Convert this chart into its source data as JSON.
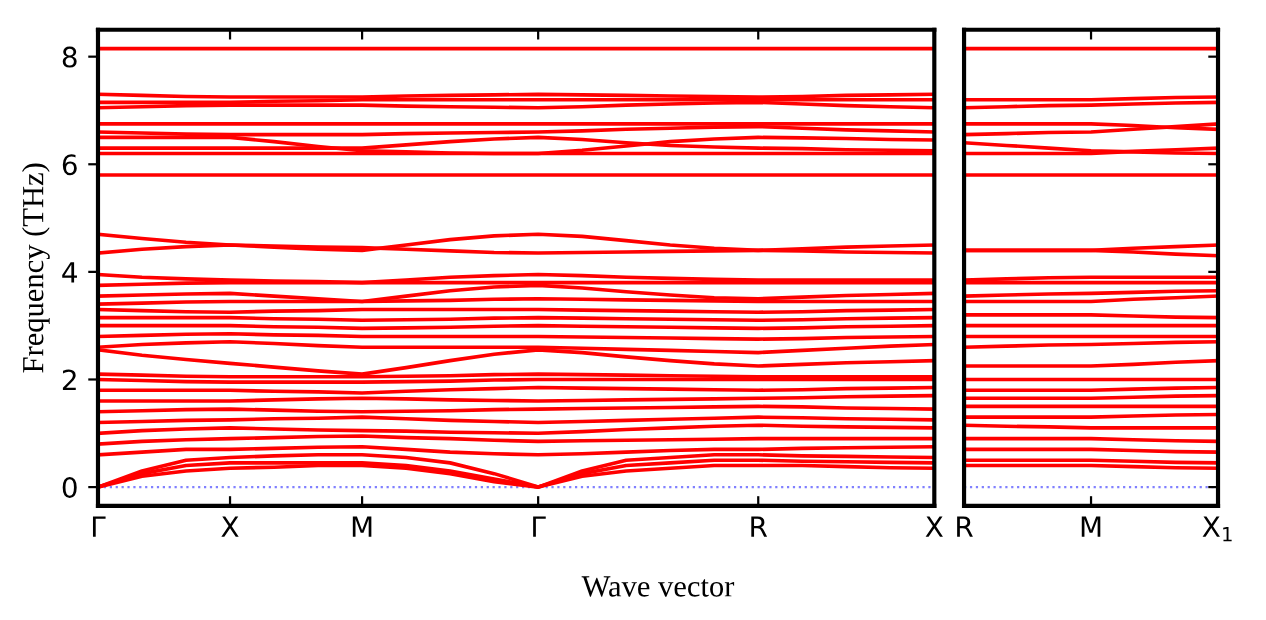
{
  "chart_data": [
    {
      "type": "line",
      "xlabel": "Wave vector",
      "ylabel": "Frequency (THz)",
      "categories": [
        "Γ",
        null,
        null,
        "X",
        null,
        null,
        "M",
        null,
        null,
        null,
        "Γ",
        null,
        null,
        null,
        null,
        "R",
        null,
        null,
        null,
        "X"
      ],
      "ylim": [
        -0.35,
        8.5
      ],
      "yticks": [
        0,
        2,
        4,
        6,
        8
      ],
      "grid": false,
      "legend": false,
      "marker": "none",
      "line_style": "solid",
      "ref_lines": [
        {
          "axis": "y",
          "value": 0,
          "color": "#8080ff",
          "line_style": "dotted"
        }
      ],
      "series": [
        {
          "color": "#ff0000",
          "values": [
            0,
            0.2,
            0.3,
            0.35,
            0.37,
            0.4,
            0.4,
            0.35,
            0.25,
            0.1,
            0,
            0.2,
            0.3,
            0.35,
            0.4,
            0.4,
            0.4,
            0.38,
            0.36,
            0.35
          ]
        },
        {
          "color": "#ff0000",
          "values": [
            0,
            0.25,
            0.4,
            0.45,
            0.45,
            0.45,
            0.45,
            0.4,
            0.3,
            0.15,
            0,
            0.25,
            0.4,
            0.45,
            0.5,
            0.5,
            0.48,
            0.47,
            0.46,
            0.45
          ]
        },
        {
          "color": "#ff0000",
          "values": [
            0,
            0.3,
            0.5,
            0.55,
            0.58,
            0.6,
            0.6,
            0.55,
            0.45,
            0.25,
            0,
            0.3,
            0.5,
            0.55,
            0.6,
            0.6,
            0.58,
            0.57,
            0.56,
            0.55
          ]
        },
        {
          "color": "#ff0000",
          "values": [
            0.6,
            0.65,
            0.7,
            0.7,
            0.72,
            0.74,
            0.75,
            0.7,
            0.65,
            0.62,
            0.6,
            0.62,
            0.65,
            0.68,
            0.7,
            0.7,
            0.72,
            0.73,
            0.74,
            0.75
          ]
        },
        {
          "color": "#ff0000",
          "values": [
            0.8,
            0.85,
            0.88,
            0.9,
            0.92,
            0.94,
            0.95,
            0.92,
            0.9,
            0.87,
            0.85,
            0.86,
            0.87,
            0.88,
            0.89,
            0.9,
            0.9,
            0.9,
            0.9,
            0.9
          ]
        },
        {
          "color": "#ff0000",
          "values": [
            1.0,
            1.05,
            1.08,
            1.1,
            1.08,
            1.06,
            1.05,
            1.04,
            1.02,
            1.01,
            1.0,
            1.03,
            1.07,
            1.1,
            1.13,
            1.15,
            1.13,
            1.12,
            1.11,
            1.1
          ]
        },
        {
          "color": "#ff0000",
          "values": [
            1.2,
            1.22,
            1.24,
            1.25,
            1.27,
            1.28,
            1.3,
            1.27,
            1.24,
            1.22,
            1.2,
            1.22,
            1.24,
            1.26,
            1.28,
            1.3,
            1.29,
            1.27,
            1.26,
            1.25
          ]
        },
        {
          "color": "#ff0000",
          "values": [
            1.4,
            1.42,
            1.44,
            1.45,
            1.43,
            1.41,
            1.4,
            1.41,
            1.42,
            1.44,
            1.45,
            1.46,
            1.47,
            1.48,
            1.49,
            1.5,
            1.49,
            1.47,
            1.46,
            1.45
          ]
        },
        {
          "color": "#ff0000",
          "values": [
            1.6,
            1.6,
            1.6,
            1.6,
            1.62,
            1.64,
            1.65,
            1.64,
            1.62,
            1.61,
            1.6,
            1.61,
            1.62,
            1.63,
            1.64,
            1.65,
            1.66,
            1.68,
            1.69,
            1.7
          ]
        },
        {
          "color": "#ff0000",
          "values": [
            1.8,
            1.8,
            1.8,
            1.8,
            1.78,
            1.77,
            1.75,
            1.78,
            1.81,
            1.83,
            1.85,
            1.84,
            1.83,
            1.82,
            1.81,
            1.8,
            1.81,
            1.83,
            1.84,
            1.85
          ]
        },
        {
          "color": "#ff0000",
          "values": [
            2.0,
            1.98,
            1.96,
            1.95,
            1.95,
            1.95,
            1.95,
            1.96,
            1.97,
            1.99,
            2.0,
            2.0,
            2.0,
            2.0,
            2.0,
            2.0,
            2.0,
            2.0,
            2.0,
            2.0
          ]
        },
        {
          "color": "#ff0000",
          "values": [
            2.1,
            2.08,
            2.06,
            2.05,
            2.05,
            2.05,
            2.05,
            2.06,
            2.07,
            2.09,
            2.1,
            2.09,
            2.08,
            2.07,
            2.06,
            2.05,
            2.05,
            2.05,
            2.05,
            2.05
          ]
        },
        {
          "color": "#ff0000",
          "values": [
            2.55,
            2.45,
            2.37,
            2.3,
            2.23,
            2.16,
            2.1,
            2.22,
            2.35,
            2.47,
            2.55,
            2.5,
            2.42,
            2.35,
            2.29,
            2.25,
            2.28,
            2.31,
            2.33,
            2.35
          ]
        },
        {
          "color": "#ff0000",
          "values": [
            2.6,
            2.65,
            2.68,
            2.7,
            2.67,
            2.63,
            2.6,
            2.6,
            2.6,
            2.6,
            2.6,
            2.58,
            2.56,
            2.54,
            2.52,
            2.5,
            2.54,
            2.58,
            2.62,
            2.65
          ]
        },
        {
          "color": "#ff0000",
          "values": [
            2.8,
            2.82,
            2.84,
            2.85,
            2.83,
            2.82,
            2.8,
            2.8,
            2.8,
            2.8,
            2.8,
            2.79,
            2.78,
            2.77,
            2.76,
            2.75,
            2.76,
            2.78,
            2.79,
            2.8
          ]
        },
        {
          "color": "#ff0000",
          "values": [
            3.0,
            3.0,
            3.0,
            3.0,
            2.98,
            2.97,
            2.95,
            2.96,
            2.97,
            2.99,
            3.0,
            2.99,
            2.98,
            2.97,
            2.96,
            2.95,
            2.96,
            2.98,
            2.99,
            3.0
          ]
        },
        {
          "color": "#ff0000",
          "values": [
            3.15,
            3.15,
            3.15,
            3.15,
            3.13,
            3.12,
            3.1,
            3.11,
            3.12,
            3.14,
            3.15,
            3.14,
            3.13,
            3.12,
            3.11,
            3.1,
            3.11,
            3.13,
            3.14,
            3.15
          ]
        },
        {
          "color": "#ff0000",
          "values": [
            3.3,
            3.28,
            3.26,
            3.25,
            3.27,
            3.28,
            3.3,
            3.3,
            3.3,
            3.3,
            3.3,
            3.29,
            3.28,
            3.27,
            3.26,
            3.25,
            3.26,
            3.28,
            3.29,
            3.3
          ]
        },
        {
          "color": "#ff0000",
          "values": [
            3.4,
            3.42,
            3.44,
            3.45,
            3.45,
            3.45,
            3.45,
            3.46,
            3.47,
            3.49,
            3.5,
            3.49,
            3.48,
            3.47,
            3.46,
            3.45,
            3.45,
            3.45,
            3.45,
            3.45
          ]
        },
        {
          "color": "#ff0000",
          "values": [
            3.55,
            3.57,
            3.59,
            3.6,
            3.55,
            3.5,
            3.45,
            3.55,
            3.65,
            3.72,
            3.75,
            3.7,
            3.63,
            3.57,
            3.52,
            3.5,
            3.53,
            3.56,
            3.58,
            3.6
          ]
        },
        {
          "color": "#ff0000",
          "values": [
            3.75,
            3.77,
            3.79,
            3.8,
            3.8,
            3.8,
            3.8,
            3.8,
            3.8,
            3.8,
            3.8,
            3.8,
            3.8,
            3.8,
            3.8,
            3.8,
            3.8,
            3.8,
            3.8,
            3.8
          ]
        },
        {
          "color": "#ff0000",
          "values": [
            3.95,
            3.9,
            3.87,
            3.85,
            3.83,
            3.82,
            3.8,
            3.85,
            3.9,
            3.93,
            3.95,
            3.93,
            3.9,
            3.88,
            3.86,
            3.85,
            3.85,
            3.85,
            3.85,
            3.85
          ]
        },
        {
          "color": "#ff0000",
          "values": [
            4.35,
            4.42,
            4.47,
            4.5,
            4.48,
            4.46,
            4.45,
            4.42,
            4.39,
            4.36,
            4.35,
            4.36,
            4.37,
            4.38,
            4.39,
            4.4,
            4.39,
            4.37,
            4.36,
            4.35
          ]
        },
        {
          "color": "#ff0000",
          "values": [
            4.7,
            4.62,
            4.55,
            4.5,
            4.46,
            4.42,
            4.4,
            4.5,
            4.6,
            4.67,
            4.7,
            4.66,
            4.58,
            4.5,
            4.44,
            4.4,
            4.43,
            4.46,
            4.48,
            4.5
          ]
        },
        {
          "color": "#ff0000",
          "values": [
            5.8,
            5.8,
            5.8,
            5.8,
            5.8,
            5.8,
            5.8,
            5.8,
            5.8,
            5.8,
            5.8,
            5.8,
            5.8,
            5.8,
            5.8,
            5.8,
            5.8,
            5.8,
            5.8,
            5.8
          ]
        },
        {
          "color": "#ff0000",
          "values": [
            6.2,
            6.2,
            6.2,
            6.2,
            6.2,
            6.2,
            6.2,
            6.2,
            6.2,
            6.2,
            6.2,
            6.2,
            6.2,
            6.2,
            6.2,
            6.2,
            6.2,
            6.2,
            6.2,
            6.2
          ]
        },
        {
          "color": "#ff0000",
          "values": [
            6.3,
            6.3,
            6.3,
            6.3,
            6.3,
            6.3,
            6.3,
            6.36,
            6.42,
            6.47,
            6.5,
            6.46,
            6.4,
            6.35,
            6.32,
            6.3,
            6.29,
            6.27,
            6.26,
            6.25
          ]
        },
        {
          "color": "#ff0000",
          "values": [
            6.5,
            6.5,
            6.5,
            6.5,
            6.42,
            6.33,
            6.25,
            6.23,
            6.21,
            6.2,
            6.2,
            6.26,
            6.34,
            6.42,
            6.47,
            6.5,
            6.49,
            6.48,
            6.46,
            6.45
          ]
        },
        {
          "color": "#ff0000",
          "values": [
            6.6,
            6.58,
            6.56,
            6.55,
            6.55,
            6.55,
            6.55,
            6.57,
            6.58,
            6.59,
            6.6,
            6.62,
            6.65,
            6.67,
            6.69,
            6.7,
            6.67,
            6.64,
            6.62,
            6.6
          ]
        },
        {
          "color": "#ff0000",
          "values": [
            6.75,
            6.75,
            6.75,
            6.75,
            6.75,
            6.75,
            6.75,
            6.75,
            6.75,
            6.75,
            6.75,
            6.75,
            6.75,
            6.75,
            6.75,
            6.75,
            6.75,
            6.75,
            6.75,
            6.75
          ]
        },
        {
          "color": "#ff0000",
          "values": [
            7.05,
            7.07,
            7.09,
            7.1,
            7.1,
            7.1,
            7.1,
            7.08,
            7.07,
            7.06,
            7.05,
            7.07,
            7.1,
            7.12,
            7.14,
            7.15,
            7.12,
            7.09,
            7.07,
            7.05
          ]
        },
        {
          "color": "#ff0000",
          "values": [
            7.15,
            7.15,
            7.15,
            7.15,
            7.17,
            7.18,
            7.2,
            7.2,
            7.2,
            7.2,
            7.2,
            7.2,
            7.2,
            7.2,
            7.2,
            7.2,
            7.2,
            7.2,
            7.2,
            7.2
          ]
        },
        {
          "color": "#ff0000",
          "values": [
            7.3,
            7.28,
            7.26,
            7.25,
            7.25,
            7.25,
            7.25,
            7.27,
            7.28,
            7.29,
            7.3,
            7.29,
            7.28,
            7.27,
            7.26,
            7.25,
            7.26,
            7.28,
            7.29,
            7.3
          ]
        },
        {
          "color": "#ff0000",
          "values": [
            8.15,
            8.15,
            8.15,
            8.15,
            8.15,
            8.15,
            8.15,
            8.15,
            8.15,
            8.15,
            8.15,
            8.15,
            8.15,
            8.15,
            8.15,
            8.15,
            8.15,
            8.15,
            8.15,
            8.15
          ]
        }
      ]
    },
    {
      "type": "line",
      "categories": [
        "R",
        null,
        null,
        "M",
        null,
        null,
        "X$_{1}$"
      ],
      "ylim": [
        -0.35,
        8.5
      ],
      "yticks": [
        0,
        2,
        4,
        6,
        8
      ],
      "tick_labels": "x",
      "grid": false,
      "legend": false,
      "marker": "none",
      "line_style": "solid",
      "ref_lines": [
        {
          "axis": "y",
          "value": 0,
          "color": "#8080ff",
          "line_style": "dotted"
        }
      ],
      "series": [
        {
          "color": "#ff0000",
          "values": [
            0.4,
            0.4,
            0.4,
            0.4,
            0.38,
            0.36,
            0.35
          ]
        },
        {
          "color": "#ff0000",
          "values": [
            0.5,
            0.5,
            0.5,
            0.5,
            0.48,
            0.46,
            0.45
          ]
        },
        {
          "color": "#ff0000",
          "values": [
            0.7,
            0.7,
            0.7,
            0.7,
            0.68,
            0.66,
            0.65
          ]
        },
        {
          "color": "#ff0000",
          "values": [
            0.9,
            0.9,
            0.9,
            0.9,
            0.88,
            0.86,
            0.85
          ]
        },
        {
          "color": "#ff0000",
          "values": [
            1.15,
            1.13,
            1.12,
            1.1,
            1.1,
            1.1,
            1.1
          ]
        },
        {
          "color": "#ff0000",
          "values": [
            1.3,
            1.3,
            1.3,
            1.3,
            1.32,
            1.34,
            1.35
          ]
        },
        {
          "color": "#ff0000",
          "values": [
            1.5,
            1.5,
            1.5,
            1.5,
            1.5,
            1.5,
            1.5
          ]
        },
        {
          "color": "#ff0000",
          "values": [
            1.65,
            1.65,
            1.65,
            1.65,
            1.67,
            1.69,
            1.7
          ]
        },
        {
          "color": "#ff0000",
          "values": [
            1.8,
            1.8,
            1.8,
            1.8,
            1.82,
            1.84,
            1.85
          ]
        },
        {
          "color": "#ff0000",
          "values": [
            2.0,
            2.0,
            2.0,
            2.0,
            2.0,
            2.0,
            2.0
          ]
        },
        {
          "color": "#ff0000",
          "values": [
            2.25,
            2.25,
            2.25,
            2.25,
            2.28,
            2.32,
            2.35
          ]
        },
        {
          "color": "#ff0000",
          "values": [
            2.6,
            2.62,
            2.64,
            2.65,
            2.67,
            2.69,
            2.7
          ]
        },
        {
          "color": "#ff0000",
          "values": [
            2.8,
            2.8,
            2.8,
            2.8,
            2.8,
            2.8,
            2.8
          ]
        },
        {
          "color": "#ff0000",
          "values": [
            3.0,
            3.0,
            3.0,
            3.0,
            3.0,
            3.0,
            3.0
          ]
        },
        {
          "color": "#ff0000",
          "values": [
            3.2,
            3.2,
            3.2,
            3.2,
            3.18,
            3.16,
            3.15
          ]
        },
        {
          "color": "#ff0000",
          "values": [
            3.45,
            3.45,
            3.45,
            3.45,
            3.49,
            3.52,
            3.55
          ]
        },
        {
          "color": "#ff0000",
          "values": [
            3.55,
            3.57,
            3.59,
            3.6,
            3.62,
            3.64,
            3.65
          ]
        },
        {
          "color": "#ff0000",
          "values": [
            3.8,
            3.8,
            3.8,
            3.8,
            3.8,
            3.8,
            3.8
          ]
        },
        {
          "color": "#ff0000",
          "values": [
            3.85,
            3.87,
            3.89,
            3.9,
            3.9,
            3.9,
            3.9
          ]
        },
        {
          "color": "#ff0000",
          "values": [
            4.4,
            4.4,
            4.4,
            4.4,
            4.37,
            4.33,
            4.3
          ]
        },
        {
          "color": "#ff0000",
          "values": [
            4.4,
            4.4,
            4.4,
            4.4,
            4.44,
            4.47,
            4.5
          ]
        },
        {
          "color": "#ff0000",
          "values": [
            5.8,
            5.8,
            5.8,
            5.8,
            5.8,
            5.8,
            5.8
          ]
        },
        {
          "color": "#ff0000",
          "values": [
            6.2,
            6.2,
            6.2,
            6.2,
            6.24,
            6.27,
            6.3
          ]
        },
        {
          "color": "#ff0000",
          "values": [
            6.4,
            6.35,
            6.3,
            6.25,
            6.23,
            6.21,
            6.2
          ]
        },
        {
          "color": "#ff0000",
          "values": [
            6.55,
            6.57,
            6.59,
            6.6,
            6.65,
            6.7,
            6.75
          ]
        },
        {
          "color": "#ff0000",
          "values": [
            6.75,
            6.75,
            6.75,
            6.75,
            6.72,
            6.68,
            6.65
          ]
        },
        {
          "color": "#ff0000",
          "values": [
            7.05,
            7.07,
            7.09,
            7.1,
            7.12,
            7.14,
            7.15
          ]
        },
        {
          "color": "#ff0000",
          "values": [
            7.2,
            7.2,
            7.2,
            7.2,
            7.22,
            7.24,
            7.25
          ]
        },
        {
          "color": "#ff0000",
          "values": [
            8.15,
            8.15,
            8.15,
            8.15,
            8.15,
            8.15,
            8.15
          ]
        }
      ]
    }
  ]
}
